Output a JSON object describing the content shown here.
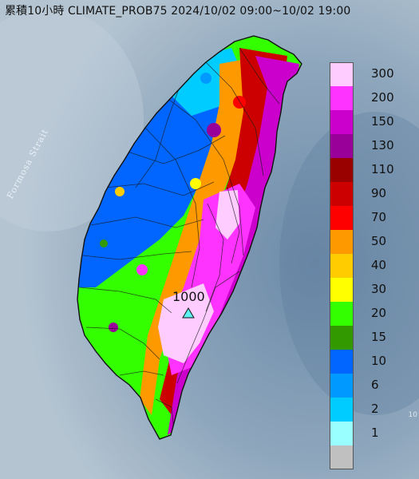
{
  "title": "累積10小時 CLIMATE_PROB75 2024/10/02 09:00~10/02 19:00",
  "sea_label": "Formosa Strait",
  "peak": {
    "value": "1000",
    "marker": "triangle-marker-icon"
  },
  "edge_text": "10",
  "legend": [
    {
      "label": "300",
      "color": "#ffccff"
    },
    {
      "label": "200",
      "color": "#ff33ff"
    },
    {
      "label": "150",
      "color": "#cc00cc"
    },
    {
      "label": "130",
      "color": "#990099"
    },
    {
      "label": "110",
      "color": "#990000"
    },
    {
      "label": "90",
      "color": "#cc0000"
    },
    {
      "label": "70",
      "color": "#ff0000"
    },
    {
      "label": "50",
      "color": "#ff9900"
    },
    {
      "label": "40",
      "color": "#ffcc00"
    },
    {
      "label": "30",
      "color": "#ffff00"
    },
    {
      "label": "20",
      "color": "#33ff00"
    },
    {
      "label": "15",
      "color": "#339900"
    },
    {
      "label": "10",
      "color": "#0066ff"
    },
    {
      "label": "6",
      "color": "#0099ff"
    },
    {
      "label": "2",
      "color": "#00ccff"
    },
    {
      "label": "1",
      "color": "#99ffff"
    },
    {
      "label": "",
      "color": "#c0c0c0"
    }
  ]
}
